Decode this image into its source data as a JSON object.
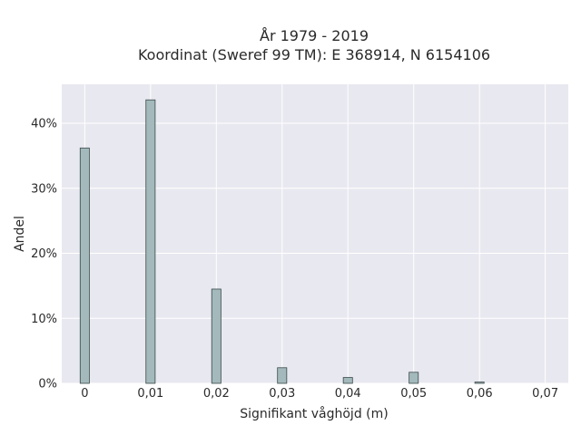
{
  "chart_data": {
    "type": "bar",
    "title": "År 1979 - 2019",
    "subtitle": "Koordinat (Sweref 99 TM): E 368914, N 6154106",
    "xlabel": "Signifikant våghöjd (m)",
    "ylabel": "Andel",
    "x_tick_labels": [
      "0",
      "0,01",
      "0,02",
      "0,03",
      "0,04",
      "0,05",
      "0,06",
      "0,07"
    ],
    "x_ticks": [
      0,
      0.01,
      0.02,
      0.03,
      0.04,
      0.05,
      0.06,
      0.07
    ],
    "y_tick_labels": [
      "0%",
      "10%",
      "20%",
      "30%",
      "40%"
    ],
    "y_ticks": [
      0,
      10,
      20,
      30,
      40
    ],
    "xlim": [
      -0.0035,
      0.0735
    ],
    "ylim": [
      0,
      46
    ],
    "bin_width": 0.0014,
    "x": [
      0,
      0.01,
      0.02,
      0.03,
      0.04,
      0.05,
      0.06
    ],
    "values": [
      36.2,
      43.6,
      14.5,
      2.4,
      0.9,
      1.7,
      0.2
    ],
    "value_unit": "%",
    "grid": true,
    "colors": {
      "bar_fill": "#a3b9bb",
      "bar_stroke": "#3a4a4a",
      "plot_background": "#e8e8f0",
      "grid": "#ffffff"
    }
  }
}
